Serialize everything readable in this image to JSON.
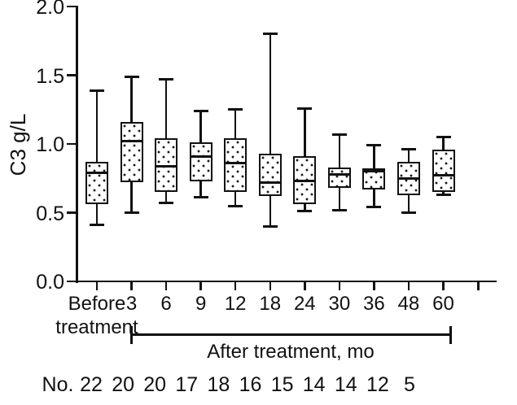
{
  "chart_data": {
    "type": "boxplot",
    "title": "",
    "ylabel": "C3 g/L",
    "ylim": [
      0.0,
      2.0
    ],
    "yticks": [
      0.0,
      0.5,
      1.0,
      1.5,
      2.0
    ],
    "ytick_labels": [
      "0.0",
      "0.5",
      "1.0",
      "1.5",
      "2.0"
    ],
    "categories": [
      "Before treatment",
      "3",
      "6",
      "9",
      "12",
      "18",
      "24",
      "30",
      "36",
      "48",
      "60"
    ],
    "x_axis_group_label": "After treatment, mo",
    "x_axis_group_span": [
      "3",
      "60"
    ],
    "counts_label": "No.",
    "counts": [
      22,
      20,
      20,
      17,
      18,
      16,
      15,
      14,
      14,
      12,
      5
    ],
    "grid": "off",
    "legend": "none",
    "boxes": [
      {
        "label": "Before treatment",
        "n": 22,
        "min": 0.41,
        "q1": 0.56,
        "median": 0.79,
        "q3": 0.87,
        "max": 1.39
      },
      {
        "label": "3",
        "n": 20,
        "min": 0.5,
        "q1": 0.72,
        "median": 1.02,
        "q3": 1.16,
        "max": 1.49
      },
      {
        "label": "6",
        "n": 20,
        "min": 0.57,
        "q1": 0.65,
        "median": 0.84,
        "q3": 1.04,
        "max": 1.47
      },
      {
        "label": "9",
        "n": 17,
        "min": 0.61,
        "q1": 0.73,
        "median": 0.91,
        "q3": 1.01,
        "max": 1.24
      },
      {
        "label": "12",
        "n": 18,
        "min": 0.55,
        "q1": 0.65,
        "median": 0.86,
        "q3": 1.04,
        "max": 1.25
      },
      {
        "label": "18",
        "n": 16,
        "min": 0.4,
        "q1": 0.62,
        "median": 0.72,
        "q3": 0.93,
        "max": 1.8
      },
      {
        "label": "24",
        "n": 15,
        "min": 0.51,
        "q1": 0.56,
        "median": 0.73,
        "q3": 0.91,
        "max": 1.26
      },
      {
        "label": "30",
        "n": 14,
        "min": 0.52,
        "q1": 0.68,
        "median": 0.78,
        "q3": 0.83,
        "max": 1.07
      },
      {
        "label": "36",
        "n": 14,
        "min": 0.54,
        "q1": 0.67,
        "median": 0.8,
        "q3": 0.82,
        "max": 0.99
      },
      {
        "label": "48",
        "n": 12,
        "min": 0.5,
        "q1": 0.63,
        "median": 0.75,
        "q3": 0.87,
        "max": 0.96
      },
      {
        "label": "60",
        "n": 5,
        "min": 0.63,
        "q1": 0.65,
        "median": 0.77,
        "q3": 0.96,
        "max": 1.05
      }
    ],
    "colors": {
      "line": "#111111",
      "dot": "#1a1a1a",
      "box_fill": "#ffffff",
      "background": "#ffffff"
    }
  }
}
